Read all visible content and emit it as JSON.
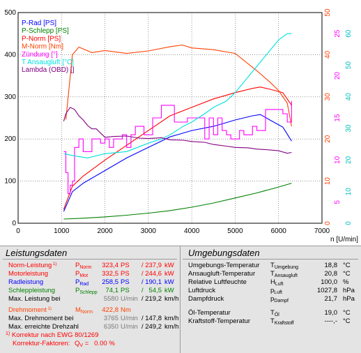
{
  "chart_data": {
    "type": "line",
    "xlabel": "n [U/min]",
    "xlim": [
      0,
      7000
    ],
    "x_ticks": [
      "0",
      "1000",
      "2000",
      "3000",
      "4000",
      "5000",
      "6000",
      "7000"
    ],
    "left_axis": {
      "range": [
        0,
        500
      ],
      "ticks": [
        "0",
        "100",
        "200",
        "300",
        "400",
        "500"
      ]
    },
    "right_axes": [
      {
        "color": "#ff4000",
        "range": [
          0,
          50
        ],
        "ticks": [
          "0",
          "10",
          "20",
          "30",
          "40",
          "50"
        ]
      },
      {
        "color": "#ff00ff",
        "range": [
          0,
          50
        ],
        "ticks": [
          "5",
          "10",
          "15",
          "20",
          "25"
        ]
      },
      {
        "color": "#00c0c0",
        "range": [
          0,
          50
        ],
        "ticks": [
          "0",
          "10",
          "20",
          "30",
          "40",
          "50",
          "60"
        ]
      }
    ],
    "legend": [
      {
        "label": "P-Rad [PS]",
        "color": "#0000ff"
      },
      {
        "label": "P-Schlepp [PS]",
        "color": "#008000"
      },
      {
        "label": "P-Norm [PS]",
        "color": "#ff0000"
      },
      {
        "label": "M-Norm [Nm]",
        "color": "#ff4000"
      },
      {
        "label": "Zündung [°]",
        "color": "#ff00ff"
      },
      {
        "label": "T Ansaugluft [°C]",
        "color": "#00e0e0"
      },
      {
        "label": "Lambda (OBD) []",
        "color": "#800080"
      }
    ],
    "series": [
      {
        "name": "P-Rad [PS]",
        "color": "#0000ff",
        "x": [
          1050,
          1250,
          1500,
          2000,
          2500,
          3000,
          3500,
          4000,
          4500,
          5000,
          5400,
          5580,
          5800,
          6100,
          6300
        ],
        "y": [
          28,
          75,
          95,
          125,
          155,
          180,
          205,
          220,
          230,
          245,
          255,
          258,
          245,
          228,
          195
        ]
      },
      {
        "name": "P-Schlepp [PS]",
        "color": "#008000",
        "x": [
          1050,
          1500,
          2000,
          2500,
          3000,
          3500,
          4000,
          4500,
          5000,
          5500,
          6000,
          6300
        ],
        "y": [
          10,
          12,
          15,
          19,
          24,
          30,
          38,
          48,
          60,
          72,
          86,
          95
        ]
      },
      {
        "name": "P-Norm [PS]",
        "color": "#ff0000",
        "x": [
          1050,
          1250,
          1500,
          2000,
          2500,
          3000,
          3500,
          4000,
          4500,
          5000,
          5400,
          5580,
          5800,
          6100,
          6300
        ],
        "y": [
          33,
          88,
          112,
          150,
          185,
          220,
          255,
          275,
          295,
          310,
          320,
          323.4,
          318,
          310,
          280
        ]
      },
      {
        "name": "M-Norm [Nm]",
        "color": "#ff4000",
        "x": [
          1100,
          1250,
          1400,
          1700,
          2000,
          2500,
          3000,
          3500,
          3780,
          4000,
          4500,
          5000,
          5500,
          5800,
          6000,
          6200,
          6300
        ],
        "y": [
          24.6,
          40,
          41.8,
          40.5,
          41.0,
          40.3,
          40.9,
          41.9,
          42.3,
          41.6,
          41.2,
          40.3,
          36.2,
          33.5,
          31.5,
          28.5,
          23.0
        ]
      },
      {
        "name": "Zündung [°]",
        "color": "#ff00ff",
        "x": [
          1050,
          1100,
          1150,
          1200,
          1250,
          1300,
          1400,
          1500,
          1600,
          1700,
          1800,
          1900,
          2000,
          2100,
          2200,
          2300,
          2400,
          2500,
          2600,
          2700,
          2800,
          2900,
          3000,
          3100,
          3200,
          3300,
          3400,
          3500,
          3600,
          3700,
          3800,
          3900,
          4000,
          4100,
          4200,
          4300,
          4400,
          4500,
          4600,
          4700,
          4800,
          4900,
          5000,
          5100,
          5200,
          5300,
          5400,
          5500,
          5600,
          5700,
          5800,
          5900,
          6000,
          6100,
          6200,
          6300
        ],
        "y": [
          17,
          12,
          7,
          9,
          10,
          18,
          20,
          17,
          17,
          20,
          20,
          19,
          20,
          18,
          20,
          20,
          21,
          18,
          21,
          23,
          23,
          21,
          21,
          25,
          25,
          28,
          28,
          28,
          24,
          24,
          24,
          25,
          25,
          25,
          25,
          20,
          25,
          21,
          25,
          22,
          21,
          20,
          20,
          22,
          21,
          21,
          23,
          22,
          22,
          27,
          27,
          27,
          27,
          26,
          24,
          29
        ]
      },
      {
        "name": "T Ansaugluft [°C]",
        "color": "#00e0e0",
        "x": [
          1050,
          1300,
          1600,
          2000,
          2500,
          3000,
          3300,
          3500,
          3800,
          4000,
          4300,
          4500,
          4800,
          5000,
          5200,
          5400,
          5600,
          5800,
          6000,
          6200,
          6300
        ],
        "y": [
          16.5,
          16.0,
          15.5,
          16.5,
          17.0,
          19.0,
          20.0,
          21.0,
          23.0,
          24.0,
          26.0,
          27.5,
          29.0,
          31.0,
          33.5,
          36.0,
          38.5,
          41.0,
          43.5,
          45.0,
          45.0
        ]
      },
      {
        "name": "Lambda (OBD) []",
        "color": "#800080",
        "x": [
          1050,
          1100,
          1200,
          1300,
          1400,
          1500,
          1600,
          1700,
          1800,
          2000,
          2200,
          2500,
          2800,
          3000,
          3300,
          3500,
          3800,
          4000,
          4300,
          4500,
          4800,
          5000,
          5300,
          5500,
          5800,
          6000,
          6200,
          6300
        ],
        "y": [
          24.2,
          26.0,
          27.5,
          27.0,
          25.5,
          24.5,
          23.2,
          22.4,
          22.4,
          20.4,
          20.6,
          20.7,
          20.2,
          20.1,
          20.3,
          19.8,
          19.7,
          19.4,
          19.2,
          18.7,
          18.3,
          18.0,
          17.9,
          17.6,
          17.4,
          17.2,
          16.6,
          16.8
        ]
      }
    ]
  },
  "leistungsdaten": {
    "title": "Leistungsdaten",
    "footnote_marker": "1)",
    "rows": [
      {
        "label": "Norm-Leistung",
        "sup": "1)",
        "sym": "P",
        "sub": "Norm",
        "v1": "323,4",
        "u1": "PS",
        "sep": "/",
        "v2": "237,9",
        "u2": "kW",
        "color": "#ff0000"
      },
      {
        "label": "Motorleistung",
        "sup": "",
        "sym": "P",
        "sub": "Mot",
        "v1": "332,5",
        "u1": "PS",
        "sep": "/",
        "v2": "244,6",
        "u2": "kW",
        "color": "#ff0000"
      },
      {
        "label": "Radleistung",
        "sup": "",
        "sym": "P",
        "sub": "Rad",
        "v1": "258,5",
        "u1": "PS",
        "sep": "/",
        "v2": "190,1",
        "u2": "kW",
        "color": "#0000ff"
      },
      {
        "label": "Schleppleistung",
        "sup": "",
        "sym": "P",
        "sub": "Schlepp",
        "v1": "74,1",
        "u1": "PS",
        "sep": "/",
        "v2": "54,5",
        "u2": "kW",
        "color": "#008000"
      },
      {
        "label": "Max. Leistung bei",
        "sup": "",
        "sym": "",
        "sub": "",
        "v1": "5580",
        "u1": "U/min",
        "sep": "/",
        "v2": "219,2",
        "u2": "km/h",
        "color": "#000000"
      },
      {
        "label": "Drehmoment",
        "sup": "1)",
        "sym": "M",
        "sub": "Norm",
        "v1": "422,8",
        "u1": "Nm",
        "sep": "",
        "v2": "",
        "u2": "",
        "color": "#ff4000"
      },
      {
        "label": "Max. Drehmoment bei",
        "sup": "",
        "sym": "",
        "sub": "",
        "v1": "3765",
        "u1": "U/min",
        "sep": "/",
        "v2": "147,8",
        "u2": "km/h",
        "color": "#000000"
      },
      {
        "label": "Max. erreichte Drehzahl",
        "sup": "",
        "sym": "",
        "sub": "",
        "v1": "6350",
        "u1": "U/min",
        "sep": "/",
        "v2": "249,2",
        "u2": "km/h",
        "color": "#000000"
      }
    ],
    "korrektur_line1": "Korrektur nach EWG 80/1269",
    "korrektur_line2_a": "Korrektur-Faktoren:",
    "korrektur_line2_sym": "Q",
    "korrektur_line2_sub": "V",
    "korrektur_line2_b": "=   0.00 %"
  },
  "umgebungsdaten": {
    "title": "Umgebungsdaten",
    "rows": [
      {
        "label": "Umgebungs-Temperatur",
        "sym": "T",
        "sub": "Umgebung",
        "value": "18,8",
        "unit": "°C"
      },
      {
        "label": "Ansaugluft-Temperatur",
        "sym": "T",
        "sub": "Ansaugluft",
        "value": "20,8",
        "unit": "°C"
      },
      {
        "label": "Relative Luftfeuchte",
        "sym": "H",
        "sub": "Luft",
        "value": "100,0",
        "unit": "%"
      },
      {
        "label": "Luftdruck",
        "sym": "p",
        "sub": "Luft",
        "value": "1027,8",
        "unit": "hPa"
      },
      {
        "label": "Dampfdruck",
        "sym": "p",
        "sub": "Dampf",
        "value": "21,7",
        "unit": "hPa"
      },
      {
        "label": "Öl-Temperatur",
        "sym": "T",
        "sub": "Öl",
        "value": "19,0",
        "unit": "°C"
      },
      {
        "label": "Kraftstoff-Temperatur",
        "sym": "T",
        "sub": "Kraftstoff",
        "value": "----,-",
        "unit": "°C"
      }
    ]
  }
}
